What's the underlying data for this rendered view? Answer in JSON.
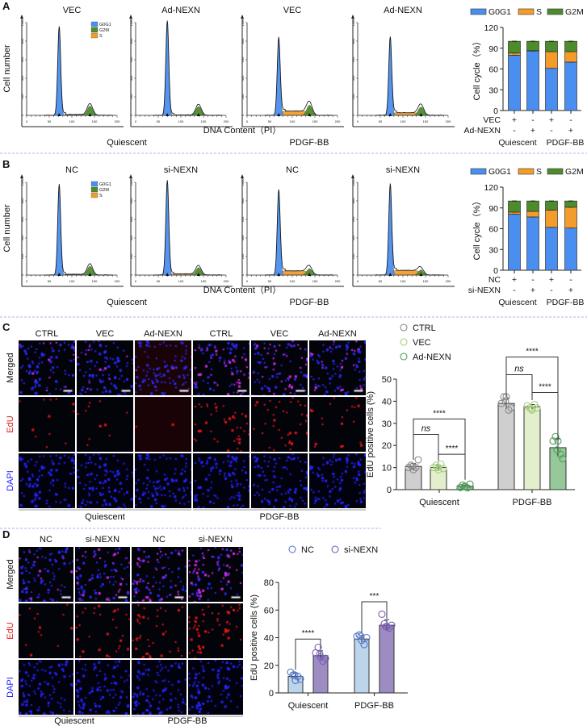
{
  "panel_letters": [
    "A",
    "B",
    "C",
    "D"
  ],
  "colors": {
    "G0G1": "#4a8fef",
    "S": "#f39c2b",
    "G2M": "#4c8c2b",
    "CTRL": "#cfcfcf",
    "VEC": "#e3efcc",
    "Ad-NEXN": "#96c89a",
    "NC": "#bcd5ea",
    "si-NEXN": "#9c8cc2",
    "separator": "#b4acec"
  },
  "images": {
    "C": {
      "columns": [
        "CTRL",
        "VEC",
        "Ad-NEXN",
        "CTRL",
        "VEC",
        "Ad-NEXN"
      ],
      "rows": [
        "Merged",
        "EdU",
        "DAPI"
      ],
      "groups": [
        "Quiescent",
        "PDGF-BB"
      ]
    },
    "D": {
      "columns": [
        "NC",
        "si-NEXN",
        "NC",
        "si-NEXN"
      ],
      "rows": [
        "Merged",
        "EdU",
        "DAPI"
      ],
      "groups": [
        "Quiescent",
        "PDGF-BB"
      ]
    }
  },
  "chart_data": [
    {
      "panel": "A",
      "type": "area",
      "subplots": [
        {
          "title": "VEC",
          "g0g1": {
            "mean": 72,
            "peak": 940
          },
          "g2m": {
            "mean": 140,
            "peak": 100
          },
          "s_level": 8
        },
        {
          "title": "Ad-NEXN",
          "g0g1": {
            "mean": 70,
            "peak": 1000
          },
          "g2m": {
            "mean": 139,
            "peak": 95
          },
          "s_level": 3
        },
        {
          "title": "VEC",
          "g0g1": {
            "mean": 70,
            "peak": 820
          },
          "g2m": {
            "mean": 138,
            "peak": 110
          },
          "s_level": 45
        },
        {
          "title": "Ad-NEXN",
          "g0g1": {
            "mean": 72,
            "peak": 830
          },
          "g2m": {
            "mean": 140,
            "peak": 90
          },
          "s_level": 28
        }
      ],
      "legend": [
        "G0G1",
        "G2M",
        "S"
      ],
      "xlim": [
        0,
        200
      ],
      "ylim": [
        0,
        1000
      ],
      "xticks": [
        0,
        50,
        100,
        150,
        200
      ],
      "yticks": [
        0,
        200,
        400,
        600,
        800,
        1000
      ],
      "ylabel": "Cell number",
      "xlabel": "DNA Content（PI）",
      "groups": [
        "Quiescent",
        "PDGF-BB"
      ]
    },
    {
      "panel": "A",
      "type": "bar",
      "stacked": true,
      "categories": [
        "VEC Quiescent",
        "Ad-NEXN Quiescent",
        "VEC PDGF-BB",
        "Ad-NEXN PDGF-BB"
      ],
      "series": [
        {
          "name": "G0G1",
          "values": [
            80,
            86,
            61,
            70
          ]
        },
        {
          "name": "S",
          "values": [
            3,
            0.5,
            24,
            15
          ]
        },
        {
          "name": "G2M",
          "values": [
            17,
            13.5,
            15,
            15
          ]
        }
      ],
      "ylabel": "Cell cycle（%）",
      "ylim": [
        0,
        120
      ],
      "yticks": [
        0,
        30,
        60,
        90,
        120
      ],
      "condition_rows": [
        {
          "label": "VEC",
          "marks": [
            "+",
            "-",
            "+",
            "-"
          ]
        },
        {
          "label": "Ad-NEXN",
          "marks": [
            "-",
            "+",
            "-",
            "+"
          ]
        }
      ],
      "groups": [
        "Quiescent",
        "PDGF-BB"
      ],
      "legend": "top"
    },
    {
      "panel": "B",
      "type": "area",
      "subplots": [
        {
          "title": "NC",
          "g0g1": {
            "mean": 72,
            "peak": 960
          },
          "g2m": {
            "mean": 140,
            "peak": 95
          },
          "s_level": 8
        },
        {
          "title": "si-NEXN",
          "g0g1": {
            "mean": 70,
            "peak": 1000
          },
          "g2m": {
            "mean": 139,
            "peak": 80
          },
          "s_level": 12
        },
        {
          "title": "NC",
          "g0g1": {
            "mean": 70,
            "peak": 900
          },
          "g2m": {
            "mean": 138,
            "peak": 70
          },
          "s_level": 45
        },
        {
          "title": "si-NEXN",
          "g0g1": {
            "mean": 72,
            "peak": 960
          },
          "g2m": {
            "mean": 140,
            "peak": 55
          },
          "s_level": 50
        }
      ],
      "legend": [
        "G0G1",
        "G2M",
        "S"
      ],
      "xlim": [
        0,
        200
      ],
      "ylim": [
        0,
        1000
      ],
      "xticks": [
        0,
        50,
        100,
        150,
        200
      ],
      "yticks": [
        0,
        200,
        400,
        600,
        800,
        1000
      ],
      "ylabel": "Cell number",
      "xlabel": "DNA Content（PI）",
      "groups": [
        "Quiescent",
        "PDGF-BB"
      ]
    },
    {
      "panel": "B",
      "type": "bar",
      "stacked": true,
      "categories": [
        "NC Quiescent",
        "si-NEXN Quiescent",
        "NC PDGF-BB",
        "si-NEXN PDGF-BB"
      ],
      "series": [
        {
          "name": "G0G1",
          "values": [
            81,
            77,
            62,
            61
          ]
        },
        {
          "name": "S",
          "values": [
            3,
            8,
            25,
            30
          ]
        },
        {
          "name": "G2M",
          "values": [
            16,
            15,
            13,
            9
          ]
        }
      ],
      "ylabel": "Cell cycle（%）",
      "ylim": [
        0,
        120
      ],
      "yticks": [
        0,
        30,
        60,
        90,
        120
      ],
      "condition_rows": [
        {
          "label": "NC",
          "marks": [
            "+",
            "-",
            "+",
            "-"
          ]
        },
        {
          "label": "si-NEXN",
          "marks": [
            "-",
            "+",
            "-",
            "+"
          ]
        }
      ],
      "groups": [
        "Quiescent",
        "PDGF-BB"
      ],
      "legend": "top"
    },
    {
      "panel": "C",
      "type": "bar",
      "categories": [
        "Quiescent",
        "PDGF-BB"
      ],
      "series": [
        {
          "name": "CTRL",
          "values": [
            10.5,
            39
          ],
          "errors": [
            1.3,
            2.5
          ],
          "points": [
            [
              10,
              11,
              9,
              10,
              13.5,
              10.5
            ],
            [
              39,
              42,
              42,
              36,
              37,
              40
            ]
          ]
        },
        {
          "name": "VEC",
          "values": [
            10,
            37.5
          ],
          "errors": [
            1,
            1
          ],
          "points": [
            [
              10,
              11,
              9,
              11.5,
              9.5,
              10
            ],
            [
              38,
              37,
              36,
              38.5,
              37,
              36.5
            ]
          ]
        },
        {
          "name": "Ad-NEXN",
          "values": [
            1.5,
            19
          ],
          "errors": [
            0.6,
            4
          ],
          "points": [
            [
              1,
              2,
              1.5,
              0.8,
              2.5,
              1.3
            ],
            [
              22,
              24,
              22,
              16,
              14,
              18
            ]
          ]
        }
      ],
      "ylabel": "EdU positive cells (%)",
      "ylim": [
        0,
        50
      ],
      "yticks": [
        0,
        10,
        20,
        30,
        40,
        50
      ],
      "significance": [
        {
          "group": 0,
          "from": 0,
          "to": 1,
          "y": 25,
          "text": "ns"
        },
        {
          "group": 0,
          "from": 0,
          "to": 2,
          "y": 32,
          "text": "****"
        },
        {
          "group": 0,
          "from": 1,
          "to": 2,
          "y": 16,
          "text": "****"
        },
        {
          "group": 1,
          "from": 0,
          "to": 1,
          "y": 52,
          "text": "ns"
        },
        {
          "group": 1,
          "from": 0,
          "to": 2,
          "y": 60,
          "text": "****"
        },
        {
          "group": 1,
          "from": 1,
          "to": 2,
          "y": 44,
          "text": "****"
        }
      ],
      "legend": "top-left"
    },
    {
      "panel": "D",
      "type": "bar",
      "categories": [
        "Quiescent",
        "PDGF-BB"
      ],
      "series": [
        {
          "name": "NC",
          "values": [
            12,
            39
          ],
          "errors": [
            2.3,
            2.5
          ],
          "points": [
            [
              15,
              13,
              9,
              12,
              10,
              13
            ],
            [
              41,
              42,
              38,
              35,
              40,
              41
            ]
          ]
        },
        {
          "name": "si-NEXN",
          "values": [
            27,
            49
          ],
          "errors": [
            3.5,
            4
          ],
          "points": [
            [
              29,
              33,
              26,
              23,
              25,
              28
            ],
            [
              57,
              50,
              48,
              47,
              49,
              48
            ]
          ]
        }
      ],
      "ylabel": "EdU positive cells (%)",
      "ylim": [
        0,
        80
      ],
      "yticks": [
        0,
        20,
        40,
        60,
        80
      ],
      "significance": [
        {
          "group": 0,
          "from": 0,
          "to": 1,
          "y": 39,
          "text": "****"
        },
        {
          "group": 1,
          "from": 0,
          "to": 1,
          "y": 66,
          "text": "***"
        }
      ],
      "legend": "top"
    }
  ]
}
